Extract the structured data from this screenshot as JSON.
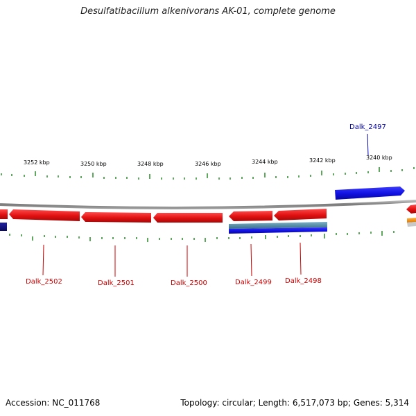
{
  "title": "Desulfatibacillum alkenivorans AK-01, complete genome",
  "accession": "Accession: NC_011768",
  "topology": "Topology: circular; Length: 6,517,073 bp; Genes: 5,314",
  "colors": {
    "forward_gene": "#1010e0",
    "reverse_gene": "#e01010",
    "backbone": "#8a8a8a",
    "ticks": "#2a8a2a",
    "rna": "#4a86a6",
    "label_forward": "#0000aa",
    "label_reverse": "#cc0000"
  },
  "scale_labels": [
    "3252 kbp",
    "3250 kbp",
    "3248 kbp",
    "3246 kbp",
    "3244 kbp",
    "3242 kbp",
    "3240 kbp"
  ],
  "gene_labels": {
    "forward": [
      "Dalk_2497"
    ],
    "reverse": [
      "Dalk_2502",
      "Dalk_2501",
      "Dalk_2500",
      "Dalk_2499",
      "Dalk_2498"
    ]
  }
}
